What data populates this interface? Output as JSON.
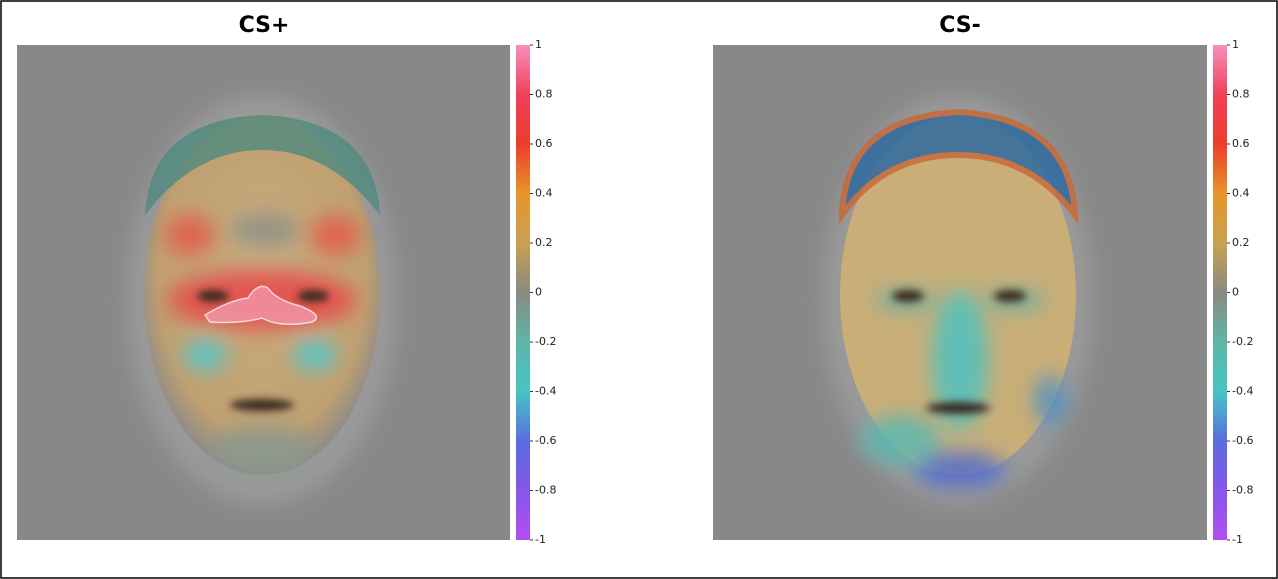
{
  "panels": [
    {
      "title": "CS+",
      "colorbar": {
        "lim": [
          -1,
          1
        ],
        "ticks": [
          1,
          0.8,
          0.6,
          0.4,
          0.2,
          0,
          -0.2,
          -0.4,
          -0.6,
          -0.8,
          -1
        ]
      }
    },
    {
      "title": "CS-",
      "colorbar": {
        "lim": [
          -1,
          1
        ],
        "ticks": [
          1,
          0.8,
          0.6,
          0.4,
          0.2,
          0,
          -0.2,
          -0.4,
          -0.6,
          -0.8,
          -1
        ]
      }
    }
  ]
}
